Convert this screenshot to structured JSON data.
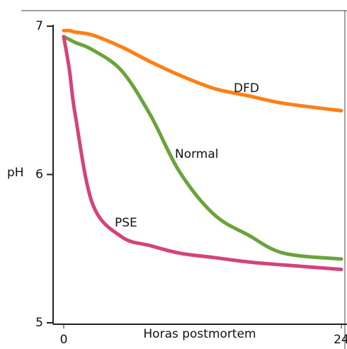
{
  "chart_data": {
    "type": "line",
    "ylabel": "pH",
    "xlabel": "Horas postmortem",
    "x": [
      0,
      0.5,
      1,
      2.5,
      5,
      7.5,
      10,
      13,
      16,
      19,
      24
    ],
    "series": [
      {
        "name": "DFD",
        "color": "#ff7f14",
        "values": [
          6.97,
          6.97,
          6.96,
          6.94,
          6.86,
          6.76,
          6.67,
          6.58,
          6.53,
          6.48,
          6.43
        ]
      },
      {
        "name": "Normal",
        "color": "#6aa33a",
        "values": [
          6.93,
          6.91,
          6.89,
          6.84,
          6.7,
          6.4,
          6.02,
          5.73,
          5.59,
          5.47,
          5.43
        ]
      },
      {
        "name": "PSE",
        "color": "#d4437a",
        "values": [
          6.93,
          6.7,
          6.4,
          5.8,
          5.58,
          5.52,
          5.47,
          5.44,
          5.41,
          5.39,
          5.36
        ]
      }
    ],
    "xlim": [
      0,
      24
    ],
    "xticks": [
      0,
      24
    ],
    "ylim": [
      5,
      7
    ],
    "yticks": [
      5,
      6,
      7
    ]
  }
}
